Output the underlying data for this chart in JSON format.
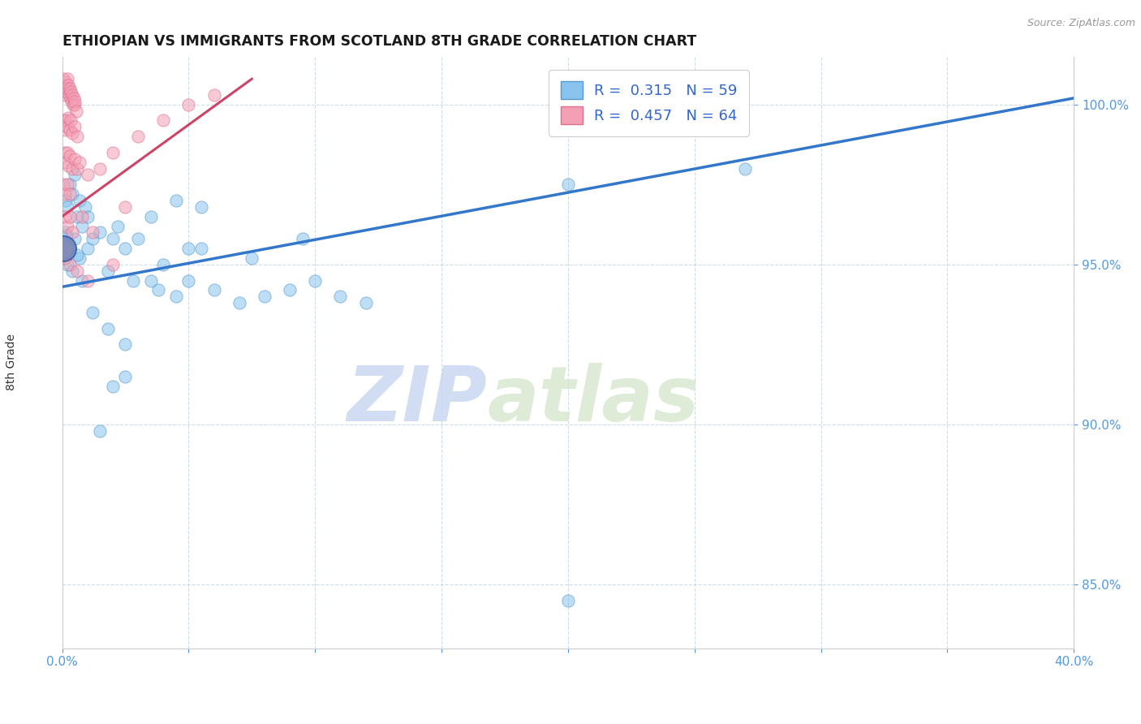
{
  "title": "ETHIOPIAN VS IMMIGRANTS FROM SCOTLAND 8TH GRADE CORRELATION CHART",
  "source": "Source: ZipAtlas.com",
  "ylabel": "8th Grade",
  "xlim": [
    0.0,
    40.0
  ],
  "ylim": [
    83.0,
    101.5
  ],
  "xticks": [
    0.0,
    5.0,
    10.0,
    15.0,
    20.0,
    25.0,
    30.0,
    35.0,
    40.0
  ],
  "yticks": [
    85.0,
    90.0,
    95.0,
    100.0
  ],
  "blue_color": "#88C4EE",
  "pink_color": "#F4A0B4",
  "blue_edge": "#5599CC",
  "pink_edge": "#DD7090",
  "blue_R": 0.315,
  "blue_N": 59,
  "pink_R": 0.457,
  "pink_N": 64,
  "blue_trend_x": [
    0.0,
    40.0
  ],
  "blue_trend_y": [
    94.3,
    100.2
  ],
  "pink_trend_x": [
    0.0,
    7.5
  ],
  "pink_trend_y": [
    96.5,
    100.8
  ],
  "watermark_zip": "ZIP",
  "watermark_atlas": "atlas",
  "scatter_blue": [
    [
      0.15,
      97.0
    ],
    [
      0.2,
      96.8
    ],
    [
      0.3,
      97.5
    ],
    [
      0.4,
      97.2
    ],
    [
      0.5,
      97.8
    ],
    [
      0.6,
      96.5
    ],
    [
      0.7,
      97.0
    ],
    [
      0.8,
      96.2
    ],
    [
      0.9,
      96.8
    ],
    [
      1.0,
      96.5
    ],
    [
      0.3,
      95.5
    ],
    [
      0.5,
      95.8
    ],
    [
      0.7,
      95.2
    ],
    [
      1.0,
      95.5
    ],
    [
      1.2,
      95.8
    ],
    [
      0.1,
      95.2
    ],
    [
      0.2,
      95.0
    ],
    [
      0.4,
      94.8
    ],
    [
      0.6,
      95.3
    ],
    [
      0.8,
      94.5
    ],
    [
      0.05,
      95.8
    ],
    [
      0.08,
      95.5
    ],
    [
      0.12,
      96.0
    ],
    [
      0.18,
      95.9
    ],
    [
      1.5,
      96.0
    ],
    [
      2.0,
      95.8
    ],
    [
      2.5,
      95.5
    ],
    [
      3.0,
      95.8
    ],
    [
      2.2,
      96.2
    ],
    [
      3.5,
      96.5
    ],
    [
      4.5,
      97.0
    ],
    [
      5.5,
      96.8
    ],
    [
      1.8,
      94.8
    ],
    [
      2.8,
      94.5
    ],
    [
      3.8,
      94.2
    ],
    [
      4.5,
      94.0
    ],
    [
      5.0,
      94.5
    ],
    [
      6.0,
      94.2
    ],
    [
      7.0,
      93.8
    ],
    [
      8.0,
      94.0
    ],
    [
      9.0,
      94.2
    ],
    [
      10.0,
      94.5
    ],
    [
      11.0,
      94.0
    ],
    [
      12.0,
      93.8
    ],
    [
      5.5,
      95.5
    ],
    [
      7.5,
      95.2
    ],
    [
      9.5,
      95.8
    ],
    [
      3.5,
      94.5
    ],
    [
      4.0,
      95.0
    ],
    [
      5.0,
      95.5
    ],
    [
      1.2,
      93.5
    ],
    [
      1.8,
      93.0
    ],
    [
      2.5,
      92.5
    ],
    [
      2.0,
      91.2
    ],
    [
      2.5,
      91.5
    ],
    [
      1.5,
      89.8
    ],
    [
      20.0,
      97.5
    ],
    [
      27.0,
      98.0
    ],
    [
      20.0,
      84.5
    ]
  ],
  "scatter_pink": [
    [
      0.05,
      100.8
    ],
    [
      0.08,
      100.5
    ],
    [
      0.1,
      100.6
    ],
    [
      0.12,
      100.3
    ],
    [
      0.15,
      100.7
    ],
    [
      0.18,
      100.4
    ],
    [
      0.2,
      100.8
    ],
    [
      0.22,
      100.5
    ],
    [
      0.25,
      100.6
    ],
    [
      0.28,
      100.3
    ],
    [
      0.3,
      100.5
    ],
    [
      0.32,
      100.2
    ],
    [
      0.35,
      100.4
    ],
    [
      0.38,
      100.1
    ],
    [
      0.4,
      100.3
    ],
    [
      0.42,
      100.0
    ],
    [
      0.45,
      100.2
    ],
    [
      0.48,
      100.0
    ],
    [
      0.5,
      100.1
    ],
    [
      0.55,
      99.8
    ],
    [
      0.08,
      99.5
    ],
    [
      0.12,
      99.2
    ],
    [
      0.15,
      99.5
    ],
    [
      0.2,
      99.3
    ],
    [
      0.25,
      99.6
    ],
    [
      0.3,
      99.2
    ],
    [
      0.35,
      99.5
    ],
    [
      0.4,
      99.1
    ],
    [
      0.5,
      99.3
    ],
    [
      0.6,
      99.0
    ],
    [
      0.1,
      98.5
    ],
    [
      0.15,
      98.2
    ],
    [
      0.2,
      98.5
    ],
    [
      0.25,
      98.1
    ],
    [
      0.3,
      98.4
    ],
    [
      0.4,
      98.0
    ],
    [
      0.5,
      98.3
    ],
    [
      0.6,
      98.0
    ],
    [
      0.7,
      98.2
    ],
    [
      0.05,
      97.5
    ],
    [
      0.1,
      97.2
    ],
    [
      0.2,
      97.5
    ],
    [
      0.3,
      97.2
    ],
    [
      0.1,
      96.5
    ],
    [
      0.2,
      96.2
    ],
    [
      0.3,
      96.5
    ],
    [
      0.4,
      96.0
    ],
    [
      0.05,
      95.5
    ],
    [
      0.1,
      95.2
    ],
    [
      0.2,
      95.5
    ],
    [
      0.3,
      95.0
    ],
    [
      1.0,
      97.8
    ],
    [
      1.5,
      98.0
    ],
    [
      2.0,
      98.5
    ],
    [
      3.0,
      99.0
    ],
    [
      4.0,
      99.5
    ],
    [
      5.0,
      100.0
    ],
    [
      6.0,
      100.3
    ],
    [
      0.8,
      96.5
    ],
    [
      1.2,
      96.0
    ],
    [
      2.5,
      96.8
    ],
    [
      0.6,
      94.8
    ],
    [
      1.0,
      94.5
    ],
    [
      2.0,
      95.0
    ]
  ],
  "large_blue_markers": [
    [
      0.05,
      95.5
    ]
  ],
  "large_pink_markers": [
    [
      0.05,
      95.5
    ]
  ]
}
